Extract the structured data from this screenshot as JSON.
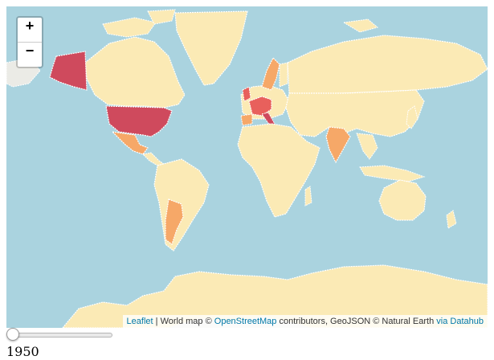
{
  "zoom_controls": {
    "zoom_in_label": "+",
    "zoom_out_label": "−"
  },
  "attribution": {
    "leaflet_link": "Leaflet",
    "separator": " | ",
    "world_map_text": "World map © ",
    "osm_link": "OpenStreetMap",
    "contributors_text": " contributors, GeoJSON © Natural Earth ",
    "datahub_link": "via Datahub"
  },
  "slider": {
    "value": 1950
  },
  "year_label": "1950",
  "colors": {
    "ocean": "#aad3df",
    "land_base": "#fbeab5",
    "land_low": "#f6a868",
    "land_mid": "#e8605c",
    "land_high": "#cf4a5d",
    "polar": "#ebebe6",
    "borders": "#ffffff"
  }
}
